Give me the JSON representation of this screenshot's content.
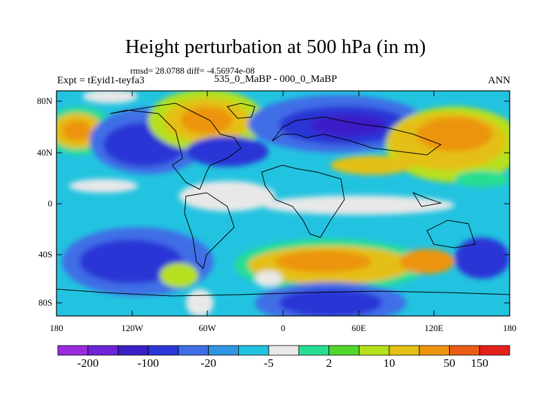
{
  "title": "Height perturbation at 500 hPa (in m)",
  "stats": "rmsd= 28.0788 diff= -4.56974e-08",
  "expt": "Expt = tEyid1-teyfa3",
  "case": "535_0_MaBP - 000_0_MaBP",
  "season": "ANN",
  "lat_ticks": [
    "80N",
    "40N",
    "0",
    "40S",
    "80S"
  ],
  "lon_ticks": [
    "180",
    "120W",
    "60W",
    "0",
    "60E",
    "120E",
    "180"
  ],
  "colorbar": {
    "colors": [
      "#9a2bdc",
      "#6f24d8",
      "#3a1fc6",
      "#2a36d6",
      "#3f6ee6",
      "#2e96e0",
      "#22c3e0",
      "#e8e8e8",
      "#26de92",
      "#52d72c",
      "#b6e01c",
      "#e4c012",
      "#ec9410",
      "#ea5c16",
      "#e4201a"
    ],
    "labels": [
      "-200",
      "-100",
      "-20",
      "-5",
      "2",
      "10",
      "50",
      "150"
    ]
  }
}
